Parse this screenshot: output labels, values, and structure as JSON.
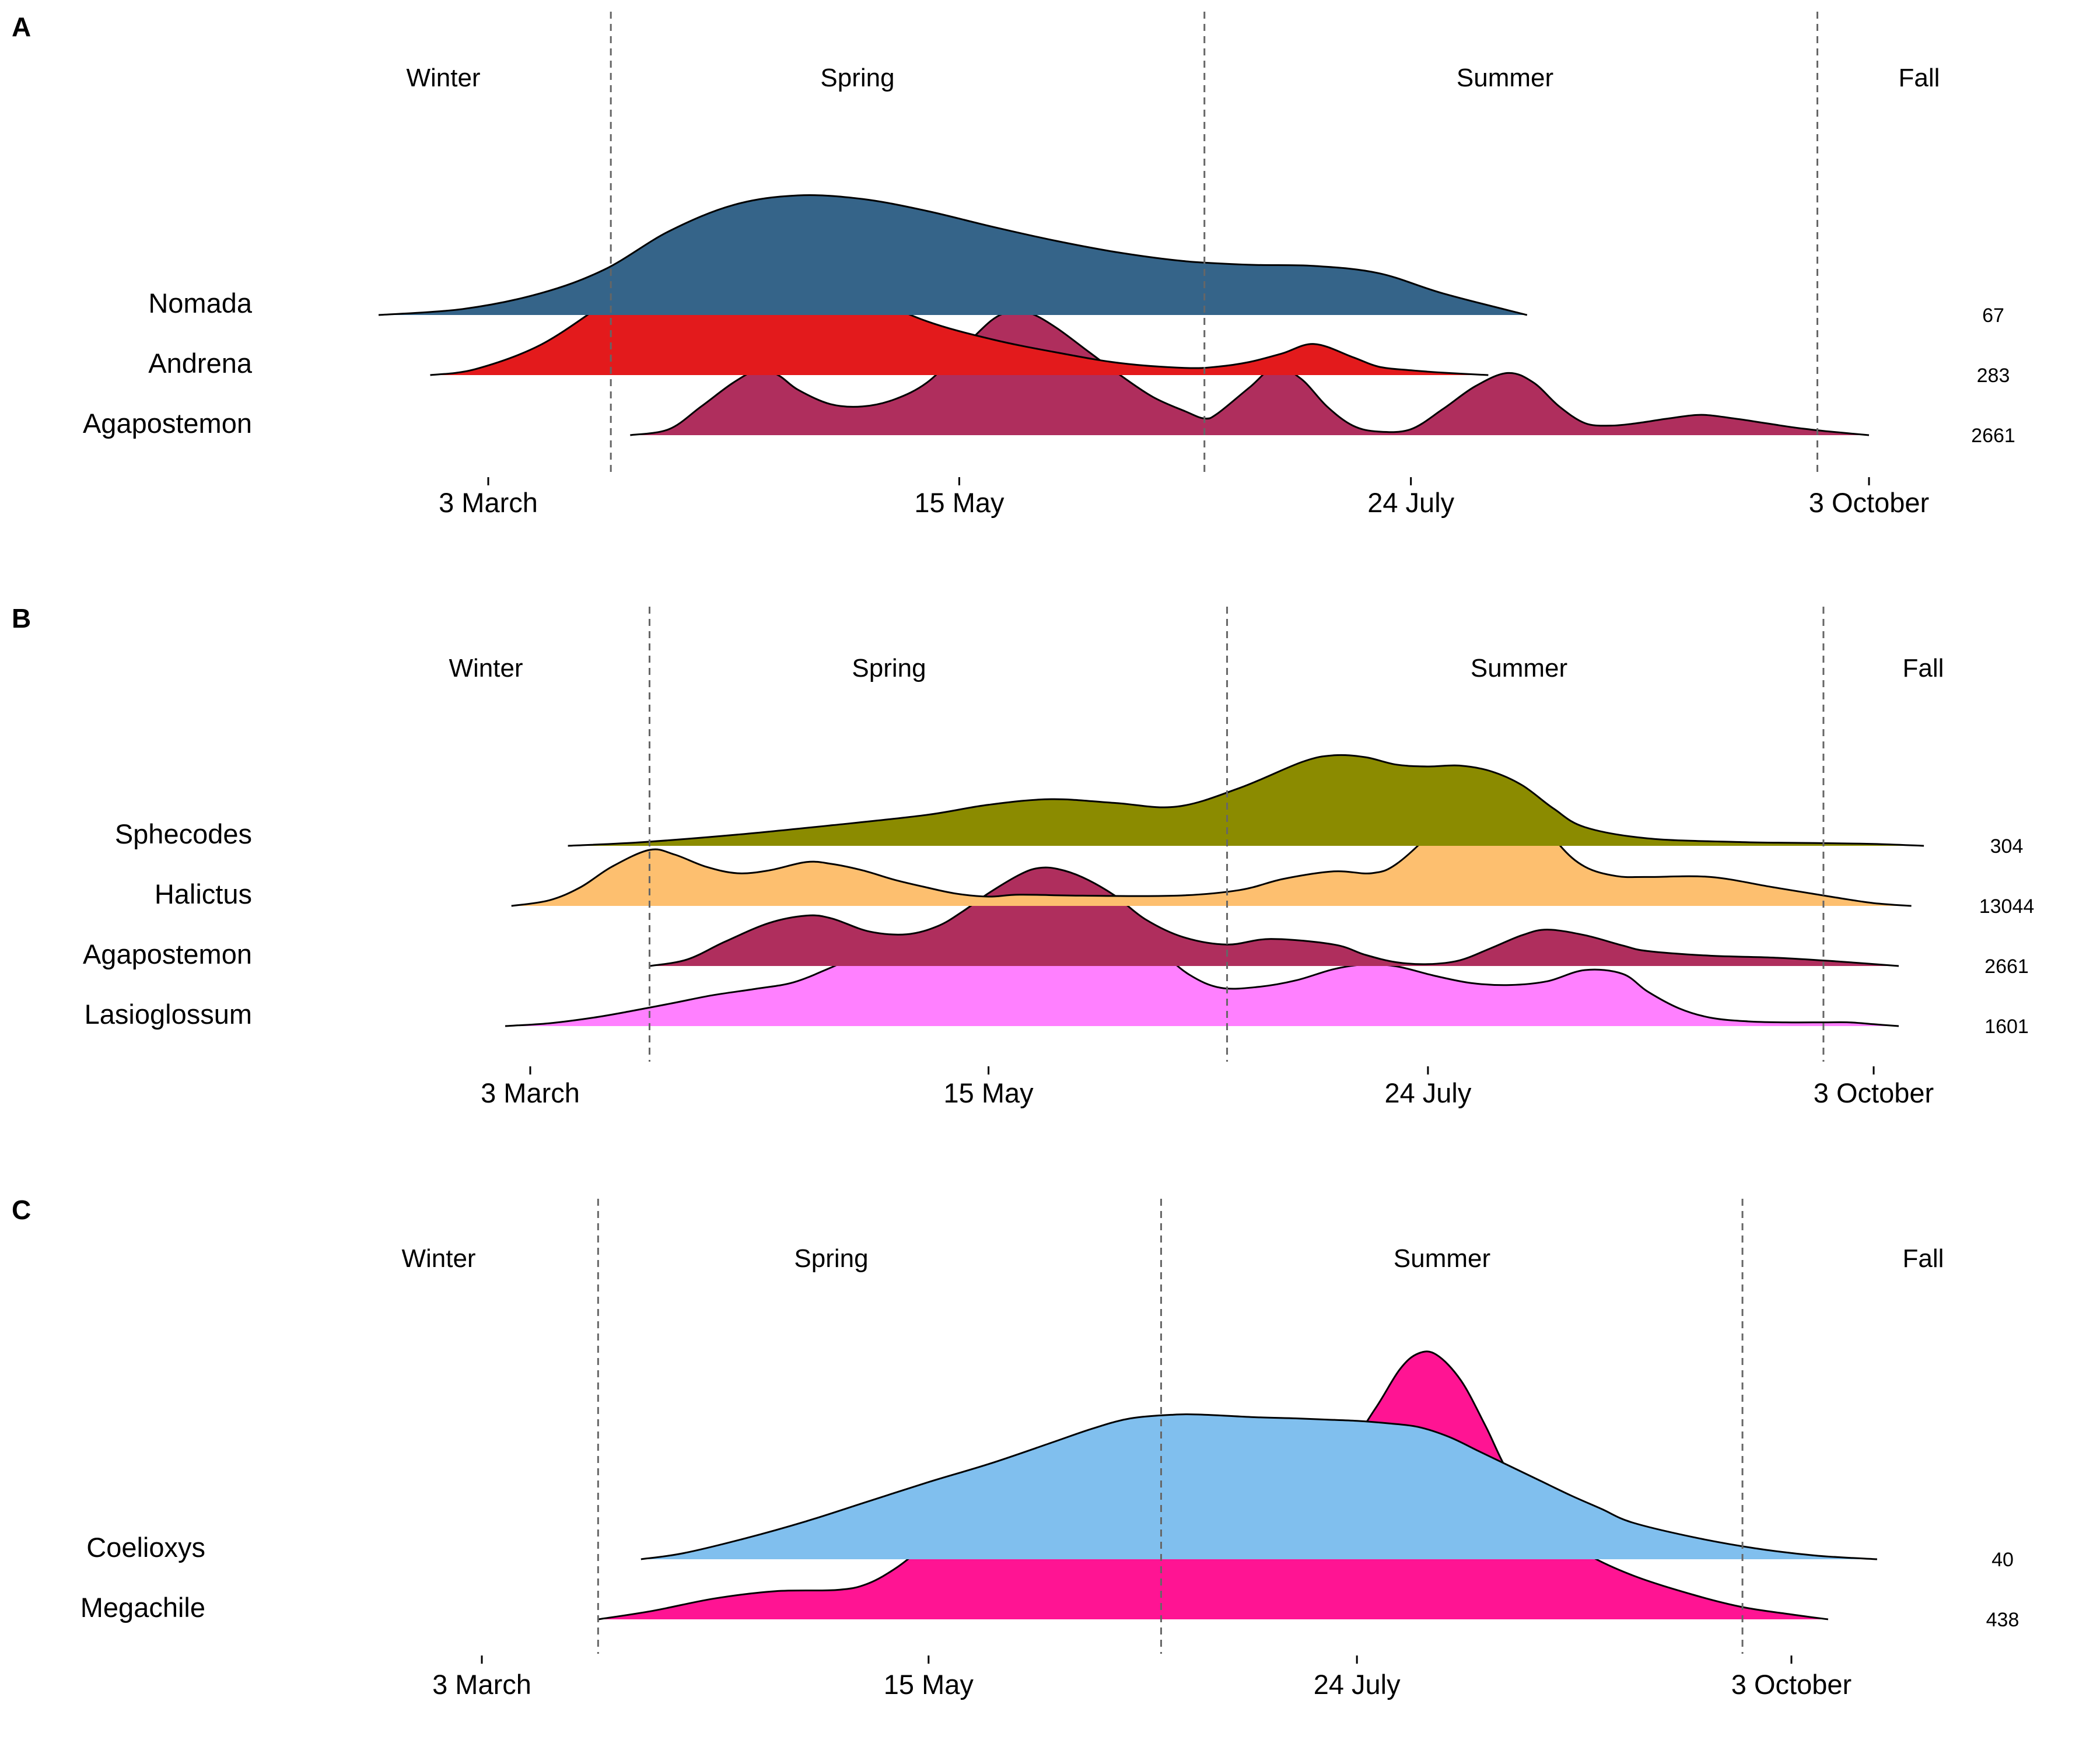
{
  "chart_data": [
    {
      "type": "area",
      "panel": "A",
      "x_ticks": [
        "3 March",
        "15 May",
        "24 July",
        "3 October"
      ],
      "x_tick_days": [
        62,
        135,
        205,
        276
      ],
      "season_labels": [
        "Winter",
        "Spring",
        "Summer",
        "Fall"
      ],
      "season_boundaries_day": [
        81,
        173,
        268
      ],
      "series": [
        {
          "name": "Nomada",
          "count": "67",
          "color": "#356489",
          "x": [
            45,
            58,
            70,
            80,
            90,
            100,
            110,
            120,
            130,
            140,
            150,
            160,
            170,
            180,
            190,
            200,
            210,
            223
          ],
          "y": [
            0.0,
            0.05,
            0.18,
            0.38,
            0.7,
            0.92,
            1.0,
            0.97,
            0.87,
            0.74,
            0.62,
            0.52,
            0.45,
            0.42,
            0.41,
            0.35,
            0.18,
            0.0
          ]
        },
        {
          "name": "Andrena",
          "count": "283",
          "color": "#E31A1C",
          "x": [
            53,
            60,
            70,
            80,
            84,
            90,
            95,
            100,
            106,
            112,
            120,
            130,
            140,
            150,
            160,
            170,
            175,
            180,
            185,
            190,
            196,
            200,
            205,
            210,
            217
          ],
          "y": [
            0.0,
            0.05,
            0.25,
            0.6,
            0.74,
            0.88,
            0.9,
            0.91,
            0.93,
            0.86,
            0.68,
            0.45,
            0.3,
            0.19,
            0.1,
            0.06,
            0.07,
            0.11,
            0.18,
            0.26,
            0.15,
            0.07,
            0.04,
            0.02,
            0.0
          ]
        },
        {
          "name": "Agapostemon",
          "count": "2661",
          "color": "#AF2E5D",
          "x": [
            84,
            90,
            95,
            100,
            104,
            107,
            110,
            115,
            120,
            125,
            130,
            135,
            140,
            143,
            146,
            150,
            155,
            160,
            165,
            170,
            173,
            175,
            180,
            184,
            188,
            192,
            196,
            200,
            205,
            210,
            215,
            220,
            224,
            228,
            232,
            236,
            240,
            245,
            250,
            255,
            260,
            265,
            270,
            276
          ],
          "y": [
            0.0,
            0.05,
            0.24,
            0.44,
            0.55,
            0.5,
            0.38,
            0.26,
            0.24,
            0.3,
            0.44,
            0.7,
            0.96,
            1.03,
            1.02,
            0.9,
            0.7,
            0.5,
            0.32,
            0.2,
            0.14,
            0.18,
            0.4,
            0.57,
            0.47,
            0.24,
            0.08,
            0.03,
            0.05,
            0.22,
            0.41,
            0.52,
            0.44,
            0.24,
            0.1,
            0.08,
            0.1,
            0.14,
            0.17,
            0.14,
            0.1,
            0.06,
            0.03,
            0.0
          ]
        }
      ]
    },
    {
      "type": "area",
      "panel": "B",
      "x_ticks": [
        "3 March",
        "15 May",
        "24 July",
        "3 October"
      ],
      "x_tick_days": [
        62,
        135,
        205,
        276
      ],
      "season_labels": [
        "Winter",
        "Spring",
        "Summer",
        "Fall"
      ],
      "season_boundaries_day": [
        81,
        173,
        268
      ],
      "series": [
        {
          "name": "Sphecodes",
          "count": "304",
          "color": "#8B8B00",
          "x": [
            68,
            80,
            95,
            110,
            125,
            135,
            145,
            155,
            165,
            175,
            185,
            190,
            195,
            200,
            205,
            210,
            215,
            220,
            225,
            230,
            240,
            255,
            267,
            276,
            284
          ],
          "y": [
            0.0,
            0.04,
            0.12,
            0.22,
            0.33,
            0.44,
            0.5,
            0.46,
            0.42,
            0.62,
            0.9,
            0.97,
            0.95,
            0.87,
            0.85,
            0.86,
            0.8,
            0.65,
            0.4,
            0.2,
            0.08,
            0.04,
            0.03,
            0.02,
            0.0
          ]
        },
        {
          "name": "Halictus",
          "count": "13044",
          "color": "#FDBF6F",
          "x": [
            59,
            65,
            70,
            75,
            81,
            85,
            90,
            95,
            100,
            106,
            110,
            115,
            120,
            125,
            130,
            135,
            140,
            150,
            165,
            175,
            182,
            190,
            196,
            200,
            206,
            210,
            214,
            218,
            222,
            226,
            230,
            235,
            240,
            250,
            260,
            270,
            276,
            282
          ],
          "y": [
            0.0,
            0.06,
            0.2,
            0.42,
            0.6,
            0.55,
            0.42,
            0.35,
            0.38,
            0.47,
            0.45,
            0.38,
            0.28,
            0.2,
            0.13,
            0.1,
            0.12,
            0.11,
            0.11,
            0.17,
            0.29,
            0.37,
            0.35,
            0.45,
            0.82,
            1.16,
            1.39,
            1.32,
            1.05,
            0.65,
            0.42,
            0.32,
            0.31,
            0.31,
            0.2,
            0.09,
            0.03,
            0.0
          ]
        },
        {
          "name": "Agapostemon",
          "count": "2661",
          "color": "#AF2E5D",
          "x": [
            81,
            87,
            93,
            100,
            106,
            110,
            116,
            122,
            127,
            131,
            135,
            140,
            143,
            146,
            150,
            155,
            160,
            166,
            173,
            180,
            190,
            195,
            200,
            205,
            210,
            215,
            220,
            224,
            230,
            236,
            240,
            250,
            260,
            270,
            280
          ],
          "y": [
            0.0,
            0.07,
            0.26,
            0.46,
            0.54,
            0.51,
            0.37,
            0.34,
            0.43,
            0.59,
            0.78,
            0.98,
            1.05,
            1.04,
            0.95,
            0.76,
            0.5,
            0.31,
            0.23,
            0.29,
            0.23,
            0.12,
            0.04,
            0.02,
            0.06,
            0.19,
            0.33,
            0.39,
            0.33,
            0.22,
            0.16,
            0.11,
            0.09,
            0.05,
            0.0
          ]
        },
        {
          "name": "Lasioglossum",
          "count": "1601",
          "color": "#FF80FF",
          "x": [
            58,
            65,
            72,
            78,
            85,
            91,
            98,
            104,
            110,
            116,
            122,
            128,
            133,
            137,
            142,
            147,
            152,
            157,
            162,
            167,
            172,
            178,
            184,
            190,
            195,
            200,
            206,
            212,
            218,
            224,
            230,
            236,
            240,
            245,
            250,
            256,
            262,
            268,
            272,
            276,
            280
          ],
          "y": [
            0.0,
            0.03,
            0.09,
            0.16,
            0.25,
            0.33,
            0.4,
            0.47,
            0.63,
            0.81,
            0.88,
            0.88,
            0.88,
            0.92,
            1.03,
            1.14,
            1.16,
            1.06,
            0.82,
            0.55,
            0.41,
            0.42,
            0.49,
            0.61,
            0.66,
            0.64,
            0.54,
            0.46,
            0.44,
            0.48,
            0.6,
            0.56,
            0.37,
            0.19,
            0.09,
            0.05,
            0.04,
            0.04,
            0.04,
            0.02,
            0.0
          ]
        }
      ]
    },
    {
      "type": "area",
      "panel": "C",
      "x_ticks": [
        "3 March",
        "15 May",
        "24 July",
        "3 October"
      ],
      "x_tick_days": [
        62,
        135,
        205,
        276
      ],
      "season_labels": [
        "Winter",
        "Spring",
        "Summer",
        "Fall"
      ],
      "season_boundaries_day": [
        81,
        173,
        268
      ],
      "series": [
        {
          "name": "Coelioxys",
          "count": "40",
          "color": "#80BFEE",
          "x": [
            88,
            95,
            105,
            115,
            125,
            135,
            145,
            155,
            162,
            168,
            175,
            180,
            188,
            195,
            200,
            205,
            210,
            215,
            220,
            225,
            230,
            235,
            240,
            245,
            250,
            260,
            270,
            280,
            290
          ],
          "y": [
            0.0,
            0.05,
            0.17,
            0.31,
            0.47,
            0.63,
            0.78,
            0.95,
            1.07,
            1.15,
            1.18,
            1.18,
            1.16,
            1.15,
            1.14,
            1.13,
            1.11,
            1.08,
            1.0,
            0.88,
            0.76,
            0.64,
            0.52,
            0.41,
            0.3,
            0.18,
            0.09,
            0.03,
            0.0
          ]
        },
        {
          "name": "Megachile",
          "count": "438",
          "color": "#FF1493",
          "x": [
            81,
            90,
            100,
            110,
            120,
            125,
            130,
            135,
            140,
            145,
            150,
            155,
            160,
            165,
            172,
            178,
            184,
            188,
            193,
            198,
            203,
            208,
            212,
            215,
            218,
            222,
            226,
            230,
            236,
            242,
            250,
            260,
            268,
            276,
            282
          ],
          "y": [
            0.0,
            0.07,
            0.17,
            0.23,
            0.24,
            0.29,
            0.43,
            0.63,
            0.83,
            0.97,
            1.04,
            1.03,
            0.97,
            0.95,
            1.11,
            1.34,
            1.51,
            1.52,
            1.4,
            1.32,
            1.38,
            1.72,
            2.04,
            2.17,
            2.16,
            1.95,
            1.58,
            1.18,
            0.79,
            0.55,
            0.36,
            0.2,
            0.1,
            0.04,
            0.0
          ]
        }
      ]
    }
  ]
}
